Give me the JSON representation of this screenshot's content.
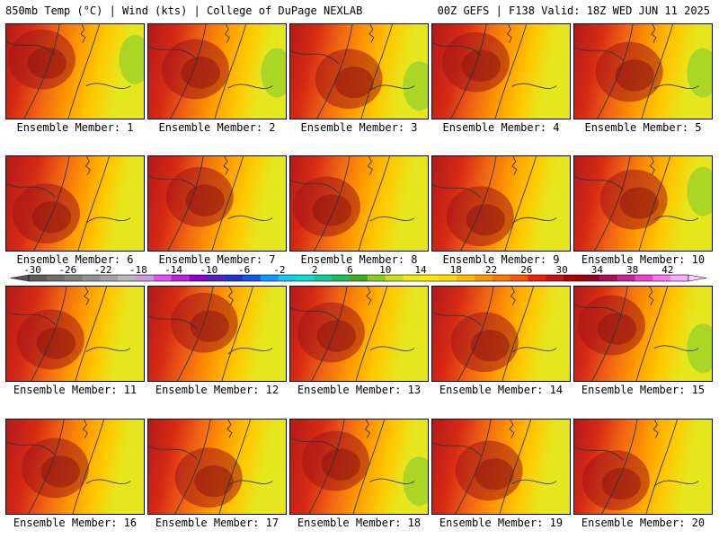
{
  "header": {
    "left": "850mb Temp (°C) | Wind (kts) | College of DuPage NEXLAB",
    "right": "00Z GEFS | F138 Valid: 18Z WED JUN 11 2025"
  },
  "caption_prefix": "Ensemble Member:",
  "members": [
    "1",
    "2",
    "3",
    "4",
    "5",
    "6",
    "7",
    "8",
    "9",
    "10",
    "11",
    "12",
    "13",
    "14",
    "15",
    "16",
    "17",
    "18",
    "19",
    "20"
  ],
  "colorbar": {
    "ticks": [
      "-30",
      "-26",
      "-22",
      "-18",
      "-14",
      "-10",
      "-6",
      "-2",
      "2",
      "6",
      "10",
      "14",
      "18",
      "22",
      "26",
      "30",
      "34",
      "38",
      "42"
    ],
    "colors": [
      "#5c5c5c",
      "#6e6e6e",
      "#7f7f7f",
      "#919191",
      "#a4a4a4",
      "#b8b8b8",
      "#cc99dd",
      "#dd55ee",
      "#bb22dd",
      "#8800cc",
      "#5522bb",
      "#2233cc",
      "#1155ee",
      "#1199ff",
      "#11ccee",
      "#11ddcc",
      "#11cc99",
      "#22bb55",
      "#44aa22",
      "#88cc22",
      "#ccdd22",
      "#eeee11",
      "#ffee00",
      "#ffdd00",
      "#ffbb00",
      "#ff9900",
      "#ff7700",
      "#ff5500",
      "#ee2200",
      "#cc1111",
      "#aa0000",
      "#990022",
      "#aa1155",
      "#cc2299",
      "#ee44cc",
      "#ff77ee",
      "#ffaaff"
    ],
    "under_color": "#555555",
    "over_color": "#ffccff"
  },
  "legend_colors": {
    "hot": "#b31a1a",
    "warm": "#f06414",
    "mild": "#ffc800",
    "cool": "#e6e61e",
    "green": "#a0d228",
    "contour": "#333333"
  }
}
